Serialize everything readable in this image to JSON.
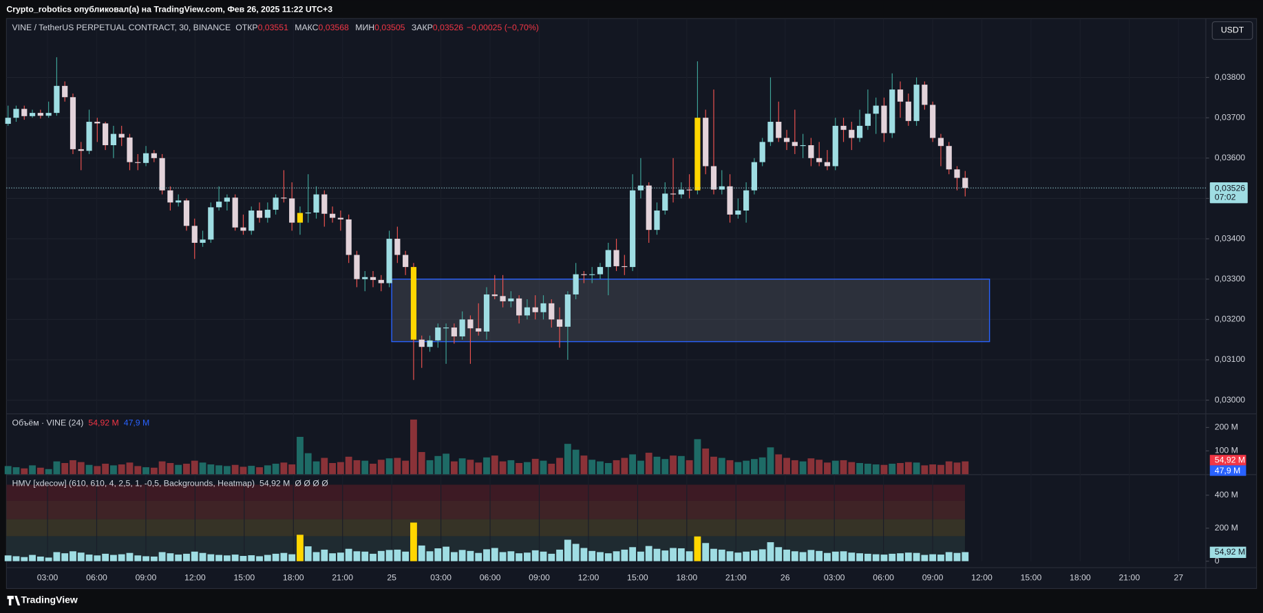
{
  "header": {
    "author_line": "Crypto_robotics опубликовал(а) на TradingView.com, Фев 26, 2025 11:22 UTC+3",
    "brand": "TradingView",
    "currency": "USDT"
  },
  "chart_data": [
    {
      "type": "candlestick",
      "symbol": "VINE / TetherUS PERPETUAL CONTRACT, 30, BINANCE",
      "ohlc_legend": [
        {
          "label": "ОТКР",
          "value": "0,03551"
        },
        {
          "label": "МАКС",
          "value": "0,03568"
        },
        {
          "label": "МИН",
          "value": "0,03505"
        },
        {
          "label": "ЗАКР",
          "value": "0,03526"
        }
      ],
      "change": "−0,00025 (−0,70%)",
      "xticks": [
        "03:00",
        "06:00",
        "09:00",
        "12:00",
        "15:00",
        "18:00",
        "21:00",
        "25",
        "03:00",
        "06:00",
        "09:00",
        "12:00",
        "15:00",
        "18:00",
        "21:00",
        "26",
        "03:00",
        "06:00",
        "09:00",
        "12:00",
        "15:00",
        "18:00",
        "21:00",
        "27"
      ],
      "ylim": [
        0.02968,
        0.03944
      ],
      "yticks": [
        {
          "value": 0.03,
          "label": "0,03000"
        },
        {
          "value": 0.031,
          "label": "0,03100"
        },
        {
          "value": 0.032,
          "label": "0,03200"
        },
        {
          "value": 0.033,
          "label": "0,03300"
        },
        {
          "value": 0.034,
          "label": "0,03400"
        },
        {
          "value": 0.035,
          "label": "0,03500"
        },
        {
          "value": 0.036,
          "label": "0,03600"
        },
        {
          "value": 0.037,
          "label": "0,03700"
        },
        {
          "value": 0.038,
          "label": "0,03800"
        }
      ],
      "grid": true,
      "last_price": {
        "value": 0.03526,
        "label": "0,03526"
      },
      "countdown": "07:02",
      "zone": {
        "top": 0.033,
        "bottom": 0.03145,
        "from": 47.3,
        "to": 121
      },
      "highlight": [
        36,
        50,
        85
      ],
      "colors": {
        "up": "#9fdde3",
        "down": "#e3d3da",
        "up_wick": "#3fa69a",
        "down_wick": "#ef5350",
        "highlight": "#ffd600",
        "zone": "#2962ff"
      },
      "ohlc": [
        [
          0.03685,
          0.0373,
          0.0368,
          0.037
        ],
        [
          0.037,
          0.0373,
          0.0369,
          0.03722
        ],
        [
          0.03722,
          0.0373,
          0.03695,
          0.03704
        ],
        [
          0.03704,
          0.0372,
          0.037,
          0.03712
        ],
        [
          0.03712,
          0.0372,
          0.03698,
          0.03705
        ],
        [
          0.03705,
          0.0374,
          0.037,
          0.03712
        ],
        [
          0.03712,
          0.0385,
          0.03705,
          0.03779
        ],
        [
          0.03779,
          0.0379,
          0.0374,
          0.03751
        ],
        [
          0.03751,
          0.0376,
          0.0361,
          0.03622
        ],
        [
          0.03622,
          0.0364,
          0.0357,
          0.03618
        ],
        [
          0.03618,
          0.0372,
          0.0361,
          0.0369
        ],
        [
          0.0369,
          0.037,
          0.0364,
          0.03686
        ],
        [
          0.03686,
          0.0369,
          0.0362,
          0.03632
        ],
        [
          0.03632,
          0.0368,
          0.036,
          0.0366
        ],
        [
          0.0366,
          0.0368,
          0.0363,
          0.03651
        ],
        [
          0.03651,
          0.0366,
          0.0357,
          0.0359
        ],
        [
          0.0359,
          0.0361,
          0.0357,
          0.03588
        ],
        [
          0.03588,
          0.0363,
          0.0358,
          0.03612
        ],
        [
          0.03612,
          0.0362,
          0.0359,
          0.036
        ],
        [
          0.036,
          0.0361,
          0.0351,
          0.0352
        ],
        [
          0.0352,
          0.0353,
          0.0347,
          0.0349
        ],
        [
          0.0349,
          0.0351,
          0.0348,
          0.03495
        ],
        [
          0.03495,
          0.035,
          0.0342,
          0.03432
        ],
        [
          0.03432,
          0.0345,
          0.0335,
          0.0339
        ],
        [
          0.0339,
          0.0342,
          0.0338,
          0.03398
        ],
        [
          0.03398,
          0.0349,
          0.0339,
          0.03478
        ],
        [
          0.03478,
          0.0353,
          0.0347,
          0.03492
        ],
        [
          0.03492,
          0.0351,
          0.0347,
          0.03502
        ],
        [
          0.03502,
          0.0351,
          0.0342,
          0.03428
        ],
        [
          0.03428,
          0.0346,
          0.0341,
          0.0342
        ],
        [
          0.0342,
          0.0348,
          0.0341,
          0.0347
        ],
        [
          0.0347,
          0.0349,
          0.0344,
          0.03452
        ],
        [
          0.03452,
          0.0349,
          0.0344,
          0.03472
        ],
        [
          0.03472,
          0.0351,
          0.0346,
          0.03502
        ],
        [
          0.03502,
          0.0357,
          0.0349,
          0.035
        ],
        [
          0.035,
          0.0354,
          0.0342,
          0.0344
        ],
        [
          0.0344,
          0.0348,
          0.0341,
          0.03464
        ],
        [
          0.03464,
          0.0356,
          0.0344,
          0.03465
        ],
        [
          0.03465,
          0.0353,
          0.0345,
          0.0351
        ],
        [
          0.0351,
          0.0352,
          0.0343,
          0.03462
        ],
        [
          0.03462,
          0.0348,
          0.0344,
          0.03452
        ],
        [
          0.03452,
          0.0347,
          0.0342,
          0.03448
        ],
        [
          0.03448,
          0.0346,
          0.0334,
          0.0336
        ],
        [
          0.0336,
          0.0337,
          0.0328,
          0.033
        ],
        [
          0.033,
          0.0332,
          0.0327,
          0.03305
        ],
        [
          0.03305,
          0.0332,
          0.0328,
          0.03298
        ],
        [
          0.03298,
          0.0331,
          0.0327,
          0.0329
        ],
        [
          0.0329,
          0.0342,
          0.0328,
          0.034
        ],
        [
          0.034,
          0.0343,
          0.0334,
          0.0336
        ],
        [
          0.0336,
          0.0337,
          0.0331,
          0.0333
        ],
        [
          0.0333,
          0.0334,
          0.0305,
          0.0315
        ],
        [
          0.0315,
          0.0316,
          0.0308,
          0.03132
        ],
        [
          0.03132,
          0.0316,
          0.0312,
          0.03148
        ],
        [
          0.03148,
          0.0319,
          0.0313,
          0.0318
        ],
        [
          0.0318,
          0.0319,
          0.0309,
          0.0318
        ],
        [
          0.0318,
          0.0319,
          0.0314,
          0.03158
        ],
        [
          0.03158,
          0.0322,
          0.0315,
          0.032
        ],
        [
          0.032,
          0.0321,
          0.0309,
          0.03178
        ],
        [
          0.03178,
          0.0324,
          0.0316,
          0.0317
        ],
        [
          0.0317,
          0.0328,
          0.0315,
          0.03262
        ],
        [
          0.03262,
          0.0331,
          0.0325,
          0.03258
        ],
        [
          0.03258,
          0.0331,
          0.0323,
          0.03245
        ],
        [
          0.03245,
          0.0327,
          0.0323,
          0.03252
        ],
        [
          0.03252,
          0.0326,
          0.0319,
          0.0321
        ],
        [
          0.0321,
          0.0325,
          0.032,
          0.0323
        ],
        [
          0.0323,
          0.0326,
          0.032,
          0.03218
        ],
        [
          0.03218,
          0.0326,
          0.032,
          0.0324
        ],
        [
          0.0324,
          0.0325,
          0.0318,
          0.032
        ],
        [
          0.032,
          0.0323,
          0.0313,
          0.03182
        ],
        [
          0.03182,
          0.0327,
          0.031,
          0.03262
        ],
        [
          0.03262,
          0.0334,
          0.0325,
          0.03312
        ],
        [
          0.03312,
          0.0332,
          0.0329,
          0.0331
        ],
        [
          0.0331,
          0.0333,
          0.0329,
          0.03312
        ],
        [
          0.03312,
          0.0334,
          0.033,
          0.0333
        ],
        [
          0.0333,
          0.0339,
          0.0326,
          0.03372
        ],
        [
          0.03372,
          0.034,
          0.0332,
          0.03332
        ],
        [
          0.03332,
          0.0336,
          0.0331,
          0.0333
        ],
        [
          0.0333,
          0.0356,
          0.0332,
          0.0352
        ],
        [
          0.0352,
          0.036,
          0.035,
          0.03532
        ],
        [
          0.03532,
          0.0354,
          0.0339,
          0.03422
        ],
        [
          0.03422,
          0.0349,
          0.0341,
          0.0347
        ],
        [
          0.0347,
          0.0354,
          0.0346,
          0.03512
        ],
        [
          0.03512,
          0.036,
          0.0349,
          0.0351
        ],
        [
          0.0351,
          0.0354,
          0.035,
          0.03522
        ],
        [
          0.03522,
          0.0356,
          0.035,
          0.0352
        ],
        [
          0.0352,
          0.0384,
          0.0351,
          0.037
        ],
        [
          0.037,
          0.0372,
          0.0356,
          0.0358
        ],
        [
          0.0358,
          0.0377,
          0.0351,
          0.03522
        ],
        [
          0.03522,
          0.0357,
          0.0351,
          0.0353
        ],
        [
          0.0353,
          0.0356,
          0.0344,
          0.0346
        ],
        [
          0.0346,
          0.035,
          0.0345,
          0.0347
        ],
        [
          0.0347,
          0.0354,
          0.0344,
          0.0352
        ],
        [
          0.0352,
          0.036,
          0.0351,
          0.0359
        ],
        [
          0.0359,
          0.0365,
          0.0358,
          0.0364
        ],
        [
          0.0364,
          0.038,
          0.0363,
          0.0369
        ],
        [
          0.0369,
          0.0374,
          0.0364,
          0.0365
        ],
        [
          0.0365,
          0.0367,
          0.0362,
          0.0364
        ],
        [
          0.0364,
          0.0372,
          0.0361,
          0.0363
        ],
        [
          0.0363,
          0.0366,
          0.036,
          0.03632
        ],
        [
          0.03632,
          0.0365,
          0.0358,
          0.036
        ],
        [
          0.036,
          0.0364,
          0.0358,
          0.0359
        ],
        [
          0.0359,
          0.0362,
          0.0357,
          0.0358
        ],
        [
          0.0358,
          0.037,
          0.0357,
          0.0368
        ],
        [
          0.0368,
          0.037,
          0.0364,
          0.0367
        ],
        [
          0.0367,
          0.0369,
          0.0362,
          0.0365
        ],
        [
          0.0365,
          0.0372,
          0.0364,
          0.0368
        ],
        [
          0.0368,
          0.0377,
          0.0367,
          0.0371
        ],
        [
          0.0371,
          0.0375,
          0.0366,
          0.0373
        ],
        [
          0.0373,
          0.0375,
          0.0364,
          0.03662
        ],
        [
          0.03662,
          0.0381,
          0.0365,
          0.0377
        ],
        [
          0.0377,
          0.0379,
          0.037,
          0.0374
        ],
        [
          0.0374,
          0.0376,
          0.0368,
          0.03692
        ],
        [
          0.03692,
          0.038,
          0.0368,
          0.03782
        ],
        [
          0.03782,
          0.0379,
          0.0372,
          0.03732
        ],
        [
          0.03732,
          0.0374,
          0.0364,
          0.0365
        ],
        [
          0.0365,
          0.0366,
          0.0358,
          0.0363
        ],
        [
          0.0363,
          0.0364,
          0.0356,
          0.03572
        ],
        [
          0.03572,
          0.0358,
          0.0352,
          0.03551
        ],
        [
          0.03551,
          0.03568,
          0.03505,
          0.03526
        ]
      ]
    },
    {
      "type": "bar",
      "title": "Объём · VINE (24)",
      "legend_values": [
        {
          "label": "54,92 M",
          "color": "#f23645"
        },
        {
          "label": "47,9 M",
          "color": "#2962ff"
        }
      ],
      "ylim": [
        0,
        255
      ],
      "yticks": [
        {
          "value": 100,
          "label": "100 M"
        },
        {
          "value": 200,
          "label": "200 M"
        }
      ],
      "colors": {
        "up": "#1e6b66",
        "down": "#8a3238"
      },
      "values": [
        35,
        30,
        25,
        38,
        28,
        22,
        55,
        48,
        60,
        52,
        40,
        35,
        45,
        38,
        42,
        50,
        35,
        30,
        28,
        55,
        48,
        40,
        45,
        58,
        50,
        42,
        38,
        35,
        40,
        32,
        36,
        30,
        38,
        45,
        50,
        42,
        160,
        90,
        55,
        70,
        48,
        52,
        75,
        60,
        58,
        45,
        62,
        68,
        70,
        58,
        234,
        95,
        60,
        78,
        88,
        55,
        68,
        62,
        50,
        72,
        80,
        55,
        60,
        48,
        52,
        66,
        58,
        45,
        70,
        130,
        105,
        80,
        62,
        55,
        48,
        60,
        70,
        85,
        58,
        92,
        75,
        65,
        80,
        78,
        60,
        150,
        110,
        75,
        70,
        60,
        52,
        58,
        65,
        72,
        115,
        85,
        70,
        60,
        55,
        68,
        62,
        50,
        58,
        60,
        52,
        48,
        45,
        42,
        40,
        45,
        48,
        52,
        50,
        38,
        42,
        40,
        55,
        50,
        55
      ]
    },
    {
      "type": "bar",
      "title": "HMV [xdecow] (610, 610, 4, 2,5, 1, -0,5, Backgrounds, Heatmap)",
      "legend_values": [
        {
          "label": "54,92 M",
          "color": "#d1d4dc"
        }
      ],
      "markers": "Ø Ø Ø Ø",
      "last_label": "54,92 M",
      "ylim": [
        0,
        522
      ],
      "yticks": [
        0,
        {
          "value": 200,
          "label": "200 M"
        },
        {
          "value": 400,
          "label": "400 M"
        }
      ],
      "highlight": [
        36,
        50,
        85
      ],
      "colors": {
        "bar": "#9fdde3",
        "highlight": "#ffd600"
      },
      "values": [
        35,
        30,
        25,
        38,
        28,
        22,
        55,
        48,
        60,
        52,
        40,
        35,
        45,
        38,
        42,
        50,
        35,
        30,
        28,
        55,
        48,
        40,
        45,
        58,
        50,
        42,
        38,
        35,
        40,
        32,
        36,
        30,
        38,
        45,
        50,
        42,
        160,
        90,
        55,
        70,
        48,
        52,
        75,
        60,
        58,
        45,
        62,
        68,
        70,
        58,
        234,
        95,
        60,
        78,
        88,
        55,
        68,
        62,
        50,
        72,
        80,
        55,
        60,
        48,
        52,
        66,
        58,
        45,
        70,
        130,
        105,
        80,
        62,
        55,
        48,
        60,
        70,
        85,
        58,
        92,
        75,
        65,
        80,
        78,
        60,
        150,
        110,
        75,
        70,
        60,
        52,
        58,
        65,
        72,
        115,
        85,
        70,
        60,
        55,
        68,
        62,
        50,
        58,
        60,
        52,
        48,
        45,
        42,
        40,
        45,
        48,
        52,
        50,
        38,
        42,
        40,
        55,
        50,
        55
      ]
    }
  ]
}
